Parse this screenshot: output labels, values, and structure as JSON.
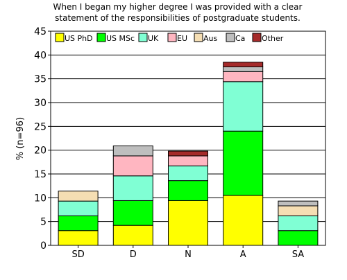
{
  "chart_data": {
    "type": "bar",
    "stacked": true,
    "title": "When I began my higher degree I was provided with a clear statement of the responsibilities of postgraduate students.",
    "title_lines": [
      "When I began my higher degree I was provided with a clear",
      "statement of the responsibilities of postgraduate students."
    ],
    "xlabel": "",
    "ylabel": "% (n=96)",
    "ylim": [
      0,
      45
    ],
    "yticks": [
      0,
      5,
      10,
      15,
      20,
      25,
      30,
      35,
      40,
      45
    ],
    "grid": true,
    "legend_position": "top-left",
    "categories": [
      "SD",
      "D",
      "N",
      "A",
      "SA"
    ],
    "series": [
      {
        "name": "US PhD",
        "color": "#ffff00",
        "values": [
          3.1,
          4.2,
          9.4,
          10.5,
          0
        ]
      },
      {
        "name": "US MSc",
        "color": "#00ff00",
        "values": [
          3.1,
          5.2,
          4.2,
          13.5,
          3.1
        ]
      },
      {
        "name": "UK",
        "color": "#80ffd4",
        "values": [
          3.1,
          5.2,
          3.1,
          10.4,
          3.1
        ]
      },
      {
        "name": "EU",
        "color": "#ffb6c1",
        "values": [
          0,
          4.2,
          2.1,
          2.1,
          0
        ]
      },
      {
        "name": "Aus",
        "color": "#f5deb3",
        "values": [
          2.1,
          0,
          0,
          0,
          2.1
        ]
      },
      {
        "name": "Ca",
        "color": "#bebebe",
        "values": [
          0,
          2.1,
          0,
          1.0,
          1.0
        ]
      },
      {
        "name": "Other",
        "color": "#a52a2a",
        "values": [
          0,
          0,
          1.0,
          1.0,
          0
        ]
      }
    ]
  }
}
